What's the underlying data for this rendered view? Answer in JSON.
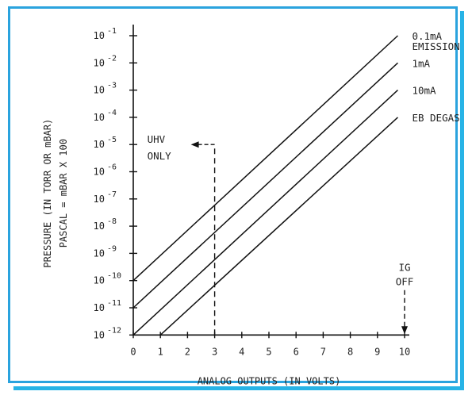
{
  "chart_data": {
    "type": "line",
    "xlabel": "ANALOG OUTPUTS (IN VOLTS)",
    "ylabel": [
      "PRESSURE (IN TORR OR mBAR)",
      "PASCAL = mBAR X 100"
    ],
    "xlim": [
      0,
      10
    ],
    "ylim_exponent": [
      -12,
      -1
    ],
    "y_log_scale": true,
    "x_ticks": [
      "0",
      "1",
      "2",
      "3",
      "4",
      "5",
      "6",
      "7",
      "8",
      "9",
      "10"
    ],
    "y_ticks": [
      {
        "base": "10",
        "exp": "-1"
      },
      {
        "base": "10",
        "exp": "-2"
      },
      {
        "base": "10",
        "exp": "-3"
      },
      {
        "base": "10",
        "exp": "-4"
      },
      {
        "base": "10",
        "exp": "-5"
      },
      {
        "base": "10",
        "exp": "-6"
      },
      {
        "base": "10",
        "exp": "-7"
      },
      {
        "base": "10",
        "exp": "-8"
      },
      {
        "base": "10",
        "exp": "-9"
      },
      {
        "base": "10",
        "exp": "-10"
      },
      {
        "base": "10",
        "exp": "-11"
      },
      {
        "base": "10",
        "exp": "-12"
      }
    ],
    "series": [
      {
        "name": "0.1mA EMISSION",
        "label_lines": [
          "0.1mA",
          "EMISSION"
        ],
        "points": [
          [
            0,
            1e-10
          ],
          [
            9.75,
            0.1
          ]
        ]
      },
      {
        "name": "1mA",
        "label_lines": [
          "1mA"
        ],
        "points": [
          [
            0,
            1e-11
          ],
          [
            9.75,
            0.01
          ]
        ]
      },
      {
        "name": "10mA",
        "label_lines": [
          "10mA"
        ],
        "points": [
          [
            0,
            1e-12
          ],
          [
            9.75,
            0.001
          ]
        ]
      },
      {
        "name": "EB DEGAS",
        "label_lines": [
          "EB DEGAS"
        ],
        "points": [
          [
            1,
            1e-12
          ],
          [
            9.75,
            0.0001
          ]
        ]
      }
    ],
    "annotations": {
      "uhv": {
        "lines": [
          "UHV",
          "ONLY"
        ],
        "x": 3,
        "y": 1e-05
      },
      "ig_off": {
        "lines": [
          "IG",
          "OFF"
        ],
        "x": 10
      }
    },
    "grid": false,
    "line_color": "#111111"
  }
}
